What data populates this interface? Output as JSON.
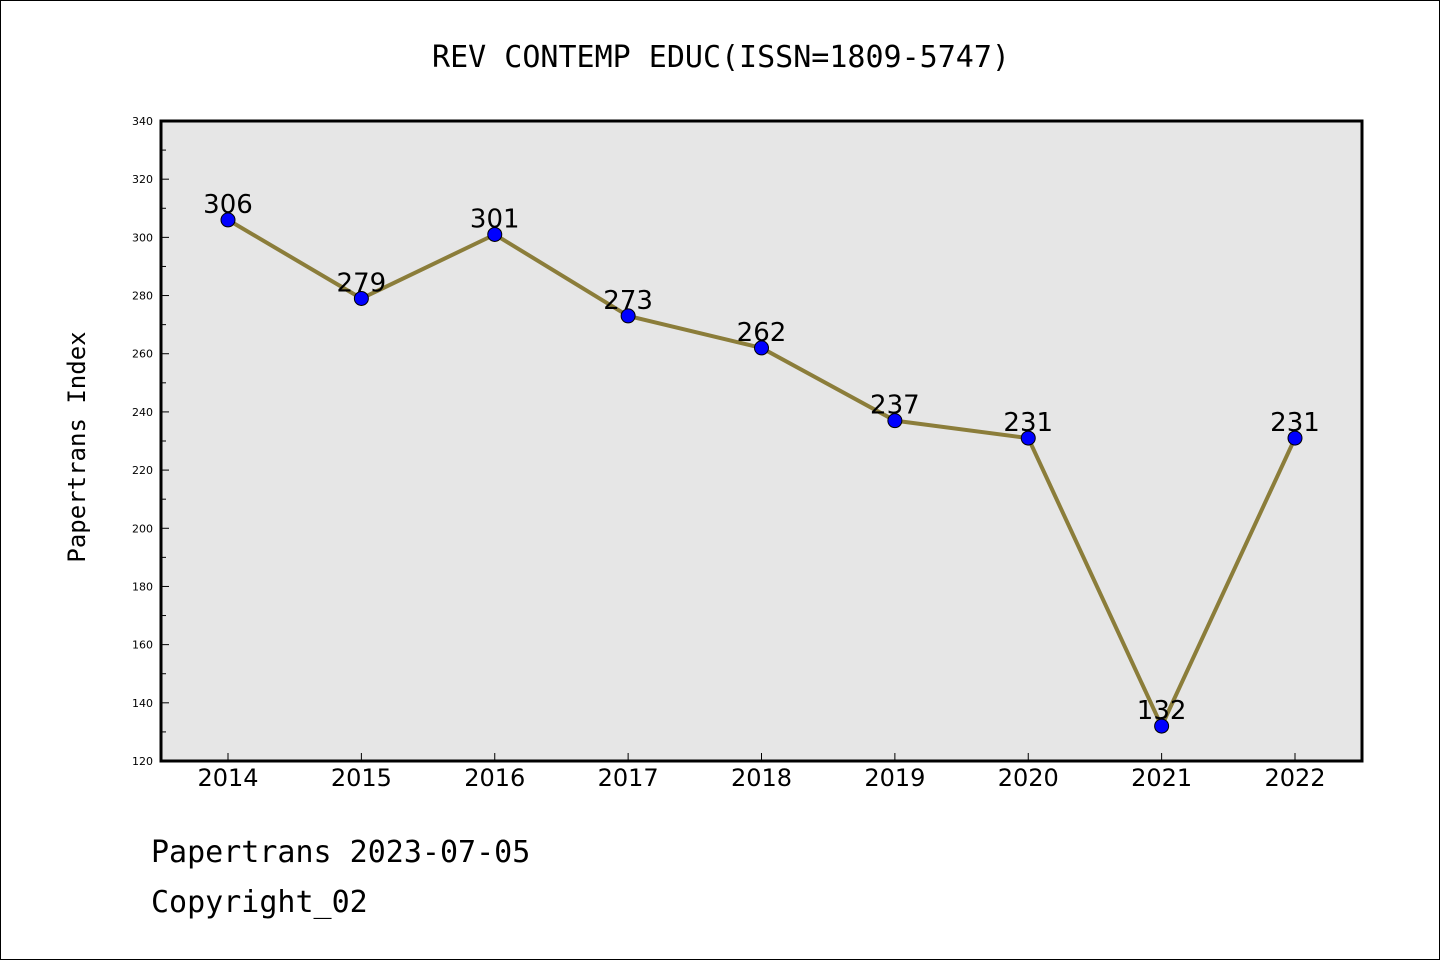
{
  "chart_data": {
    "type": "line",
    "title": "REV CONTEMP EDUC(ISSN=1809-5747)",
    "ylabel": "Papertrans Index",
    "xlabel": "",
    "categories": [
      "2014",
      "2015",
      "2016",
      "2017",
      "2018",
      "2019",
      "2020",
      "2021",
      "2022"
    ],
    "values": [
      306,
      279,
      301,
      273,
      262,
      237,
      231,
      132,
      231
    ],
    "ylim": [
      120,
      340
    ],
    "yticks": [
      120,
      140,
      160,
      180,
      200,
      220,
      240,
      260,
      280,
      300,
      320,
      340
    ],
    "grid": false,
    "data_labels": true,
    "colors": {
      "line": "#8b7d3a",
      "marker": "#0000ff",
      "plot_bg": "#e6e6e6"
    }
  },
  "footer": {
    "line1": "Papertrans 2023-07-05",
    "line2": "Copyright_02"
  }
}
